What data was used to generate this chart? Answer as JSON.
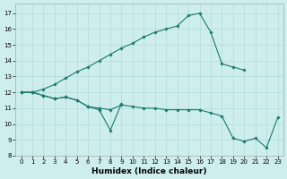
{
  "xlabel": "Humidex (Indice chaleur)",
  "background_color": "#cdeeed",
  "grid_color": "#b0dcda",
  "line_color": "#1a7a6e",
  "ylim": [
    8,
    17.6
  ],
  "xlim": [
    -0.5,
    23.5
  ],
  "yticks": [
    8,
    9,
    10,
    11,
    12,
    13,
    14,
    15,
    16,
    17
  ],
  "xticks": [
    0,
    1,
    2,
    3,
    4,
    5,
    6,
    7,
    8,
    9,
    10,
    11,
    12,
    13,
    14,
    15,
    16,
    17,
    18,
    19,
    20,
    21,
    22,
    23
  ],
  "curve_upper_x": [
    0,
    1,
    2,
    3,
    4,
    5,
    6,
    7,
    8,
    9,
    10,
    11,
    12,
    13,
    14,
    15,
    16,
    17,
    18,
    19,
    20
  ],
  "curve_upper_y": [
    12.0,
    12.0,
    12.2,
    12.5,
    12.9,
    13.3,
    13.6,
    14.0,
    14.4,
    14.8,
    15.1,
    15.5,
    15.8,
    16.0,
    16.2,
    16.85,
    17.0,
    15.8,
    13.8,
    13.6,
    13.4
  ],
  "curve_zigzag_x": [
    0,
    1,
    2,
    3,
    4,
    5,
    6,
    7,
    8,
    9
  ],
  "curve_zigzag_y": [
    12.0,
    12.0,
    11.8,
    11.6,
    11.7,
    11.5,
    11.1,
    10.9,
    9.6,
    11.3
  ],
  "curve_lower_x": [
    0,
    1,
    2,
    3,
    4,
    5,
    6,
    7,
    8,
    9,
    10,
    11,
    12,
    13,
    14,
    15,
    16,
    17,
    18,
    19,
    20,
    21,
    22,
    23
  ],
  "curve_lower_y": [
    12.0,
    12.0,
    11.8,
    11.6,
    11.7,
    11.5,
    11.1,
    11.0,
    10.9,
    11.2,
    11.1,
    11.0,
    11.0,
    10.9,
    10.9,
    10.9,
    10.9,
    10.7,
    10.5,
    9.1,
    8.9,
    9.1,
    8.5,
    10.4
  ]
}
